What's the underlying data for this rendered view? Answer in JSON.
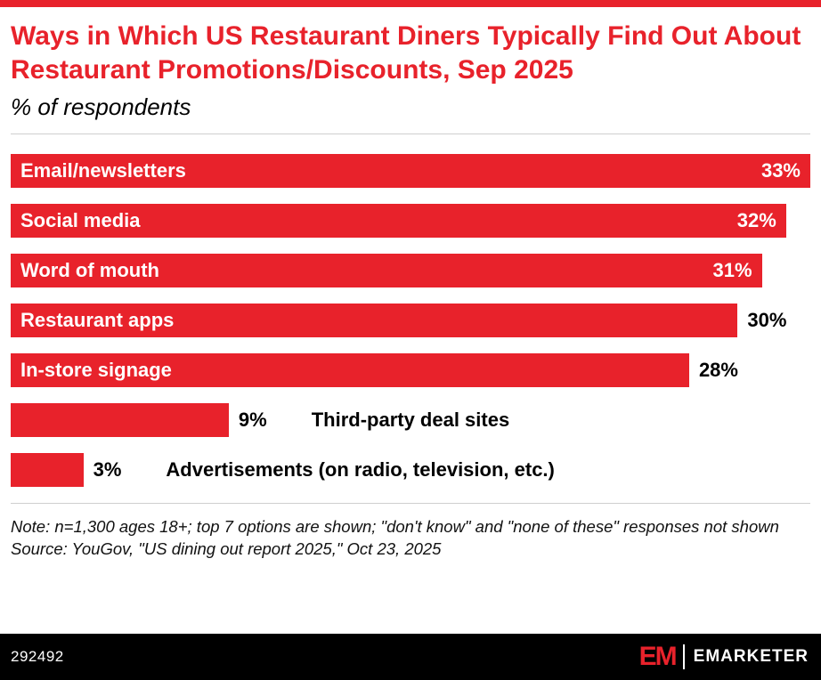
{
  "header": {
    "title": "Ways in Which US Restaurant Diners Typically Find Out About Restaurant Promotions/Discounts, Sep 2025",
    "subtitle": "% of respondents"
  },
  "chart_data": {
    "type": "bar",
    "orientation": "horizontal",
    "title": "Ways in Which US Restaurant Diners Typically Find Out About Restaurant Promotions/Discounts, Sep 2025",
    "subtitle": "% of respondents",
    "categories": [
      "Email/newsletters",
      "Social media",
      "Word of mouth",
      "Restaurant apps",
      "In-store signage",
      "Third-party deal sites",
      "Advertisements (on radio, television, etc.)"
    ],
    "values": [
      33,
      32,
      31,
      30,
      28,
      9,
      3
    ],
    "value_labels": [
      "33%",
      "32%",
      "31%",
      "30%",
      "28%",
      "9%",
      "3%"
    ],
    "xlim": [
      0,
      33
    ],
    "bar_color": "#e8222b",
    "grid": false,
    "legend": "none",
    "layout": {
      "category_inside": [
        true,
        true,
        true,
        true,
        true,
        false,
        false
      ],
      "value_inside": [
        true,
        true,
        true,
        false,
        false,
        false,
        false
      ]
    }
  },
  "notes": {
    "note": "Note: n=1,300 ages 18+; top 7 options are shown; \"don't know\" and \"none of these\" responses not shown",
    "source": "Source: YouGov, \"US dining out report 2025,\" Oct 23, 2025"
  },
  "footer": {
    "chart_number": "292492",
    "logo_mark": "EM",
    "brand": "EMARKETER"
  }
}
